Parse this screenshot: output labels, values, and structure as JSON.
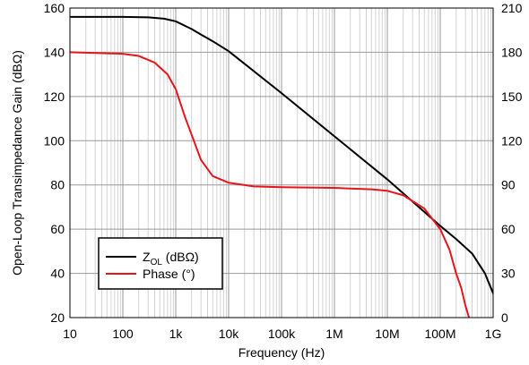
{
  "chart_data": {
    "type": "line",
    "xlabel": "Frequency (Hz)",
    "ylabel": "Open-Loop Transimpedance Gain (dBΩ)",
    "y2label": "",
    "xscale": "log",
    "xlim": [
      10,
      1000000000
    ],
    "ylim": [
      20,
      160
    ],
    "y2lim": [
      0,
      210
    ],
    "grid": true,
    "legend_position": "bottom-left",
    "x_ticks": [
      {
        "value": 10,
        "label": "10"
      },
      {
        "value": 100,
        "label": "100"
      },
      {
        "value": 1000,
        "label": "1k"
      },
      {
        "value": 10000,
        "label": "10k"
      },
      {
        "value": 100000,
        "label": "100k"
      },
      {
        "value": 1000000,
        "label": "1M"
      },
      {
        "value": 10000000,
        "label": "10M"
      },
      {
        "value": 100000000,
        "label": "100M"
      },
      {
        "value": 1000000000,
        "label": "1G"
      }
    ],
    "y_ticks": [
      20,
      40,
      60,
      80,
      100,
      120,
      140,
      160
    ],
    "y2_ticks": [
      0,
      30,
      60,
      90,
      120,
      150,
      180,
      210
    ],
    "series": [
      {
        "name_main": "Z",
        "name_sub": "OL",
        "name_suffix": " (dBΩ)",
        "color": "#000000",
        "axis": "left",
        "x": [
          10,
          100,
          300,
          600,
          1000,
          2000,
          3000,
          5000,
          10000,
          100000,
          1000000,
          10000000,
          100000000,
          200000000,
          400000000,
          700000000,
          1000000000
        ],
        "y": [
          156,
          156,
          155.8,
          155.2,
          154,
          150.5,
          148,
          145,
          140.5,
          121.5,
          102,
          82.5,
          61.5,
          55.5,
          49,
          40,
          31
        ]
      },
      {
        "name": "Phase (°)",
        "color": "#e8141b",
        "axis": "right",
        "x": [
          10,
          100,
          200,
          400,
          700,
          1000,
          1500,
          2000,
          3000,
          5000,
          10000,
          30000,
          100000,
          1000000,
          5000000,
          10000000,
          20000000,
          50000000,
          100000000,
          150000000,
          200000000,
          250000000,
          300000000,
          350000000
        ],
        "y": [
          180,
          179,
          177.5,
          173,
          165,
          155,
          136,
          124,
          107,
          96,
          91.5,
          89,
          88.5,
          88,
          87,
          86,
          83,
          74,
          60,
          46,
          30,
          20,
          8,
          0
        ]
      }
    ]
  }
}
